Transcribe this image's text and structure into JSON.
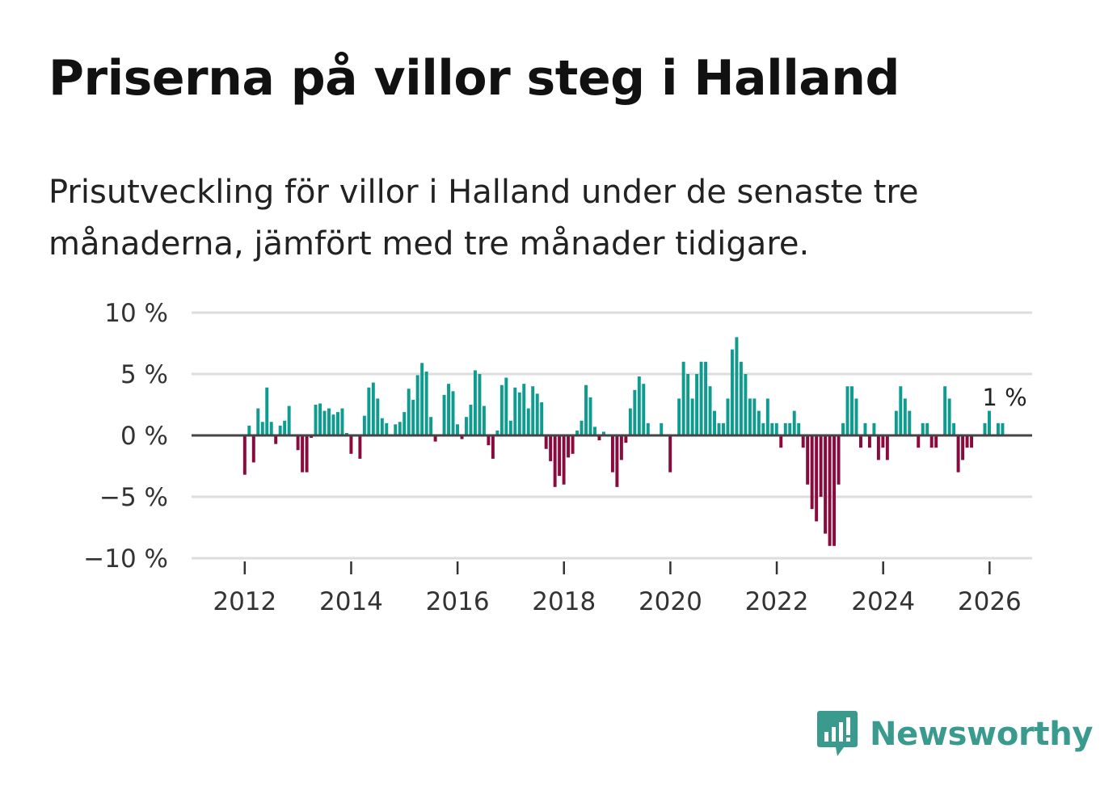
{
  "title": "Priserna på villor steg i Halland",
  "subtitle": "Prisutveckling för villor i Halland under de senaste tre månaderna, jämfört med tre månader tidigare.",
  "brand": "Newsworthy",
  "colors": {
    "positive": "#0e9c8f",
    "negative": "#8a0a3e",
    "brand": "#3a9a8e",
    "grid": "#dddddd",
    "zero": "#444444"
  },
  "chart_data": {
    "type": "bar",
    "title": "Priserna på villor steg i Halland",
    "xlabel": "",
    "ylabel": "",
    "ylim": [
      -10,
      10
    ],
    "xlim": [
      2011.0,
      2026.8
    ],
    "yticks": [
      10,
      5,
      0,
      -5,
      -10
    ],
    "ytick_labels": [
      "10 %",
      "5 %",
      "0 %",
      "−5 %",
      "−10 %"
    ],
    "xticks": [
      2012,
      2014,
      2016,
      2018,
      2020,
      2022,
      2024,
      2026
    ],
    "xtick_labels": [
      "2012",
      "2014",
      "2016",
      "2018",
      "2020",
      "2022",
      "2024",
      "2026"
    ],
    "end_label": "1 %",
    "start": 2012.0,
    "step": 0.0833,
    "values": [
      -3.2,
      0.8,
      -2.2,
      2.2,
      1.1,
      3.9,
      1.1,
      -0.7,
      0.8,
      1.2,
      2.4,
      0,
      -1.2,
      -3.0,
      -3.0,
      -0.2,
      2.5,
      2.6,
      2.0,
      2.2,
      1.7,
      1.9,
      2.2,
      0.2,
      -1.5,
      0,
      -1.9,
      1.6,
      3.9,
      4.3,
      3.0,
      1.4,
      1.0,
      0,
      0.9,
      1.1,
      1.9,
      3.8,
      2.9,
      4.9,
      5.9,
      5.2,
      1.5,
      -0.5,
      0,
      3.3,
      4.2,
      3.6,
      0.9,
      -0.3,
      1.5,
      2.5,
      5.3,
      5.0,
      2.4,
      -0.8,
      -1.9,
      0.4,
      4.1,
      4.7,
      1.2,
      3.9,
      3.5,
      4.2,
      2.2,
      4.0,
      3.4,
      2.7,
      -1.1,
      -2.1,
      -4.2,
      -3.3,
      -4.0,
      -1.8,
      -1.5,
      0.4,
      1.2,
      4.1,
      3.1,
      0.7,
      -0.4,
      0.3,
      -0.1,
      -3.0,
      -4.2,
      -2.0,
      -0.6,
      2.2,
      3.7,
      4.8,
      4.2,
      1.0,
      0,
      0,
      1.0,
      0,
      -3.0,
      0,
      3.0,
      6.0,
      5.0,
      3.0,
      5.0,
      6.0,
      6.0,
      4.0,
      2.0,
      1.0,
      1.0,
      3.0,
      7.0,
      8.0,
      6.0,
      5.0,
      3.0,
      3.0,
      2.0,
      1.0,
      3.0,
      1.0,
      1.0,
      -1.0,
      1.0,
      1.0,
      2.0,
      1.0,
      -1.0,
      -4.0,
      -6.0,
      -7.0,
      -5.0,
      -8.0,
      -9.0,
      -9.0,
      -4.0,
      1.0,
      4.0,
      4.0,
      3.0,
      -1.0,
      1.0,
      -1.0,
      1.0,
      -2.0,
      -1.0,
      -2.0,
      0,
      2.0,
      4.0,
      3.0,
      2.0,
      0,
      -1.0,
      1.0,
      1.0,
      -1.0,
      -1.0,
      0,
      4.0,
      3.0,
      1.0,
      -3.0,
      -2.0,
      -1.0,
      -1.0,
      0,
      0,
      1.0,
      2.0,
      0,
      1.0,
      1.0
    ]
  }
}
